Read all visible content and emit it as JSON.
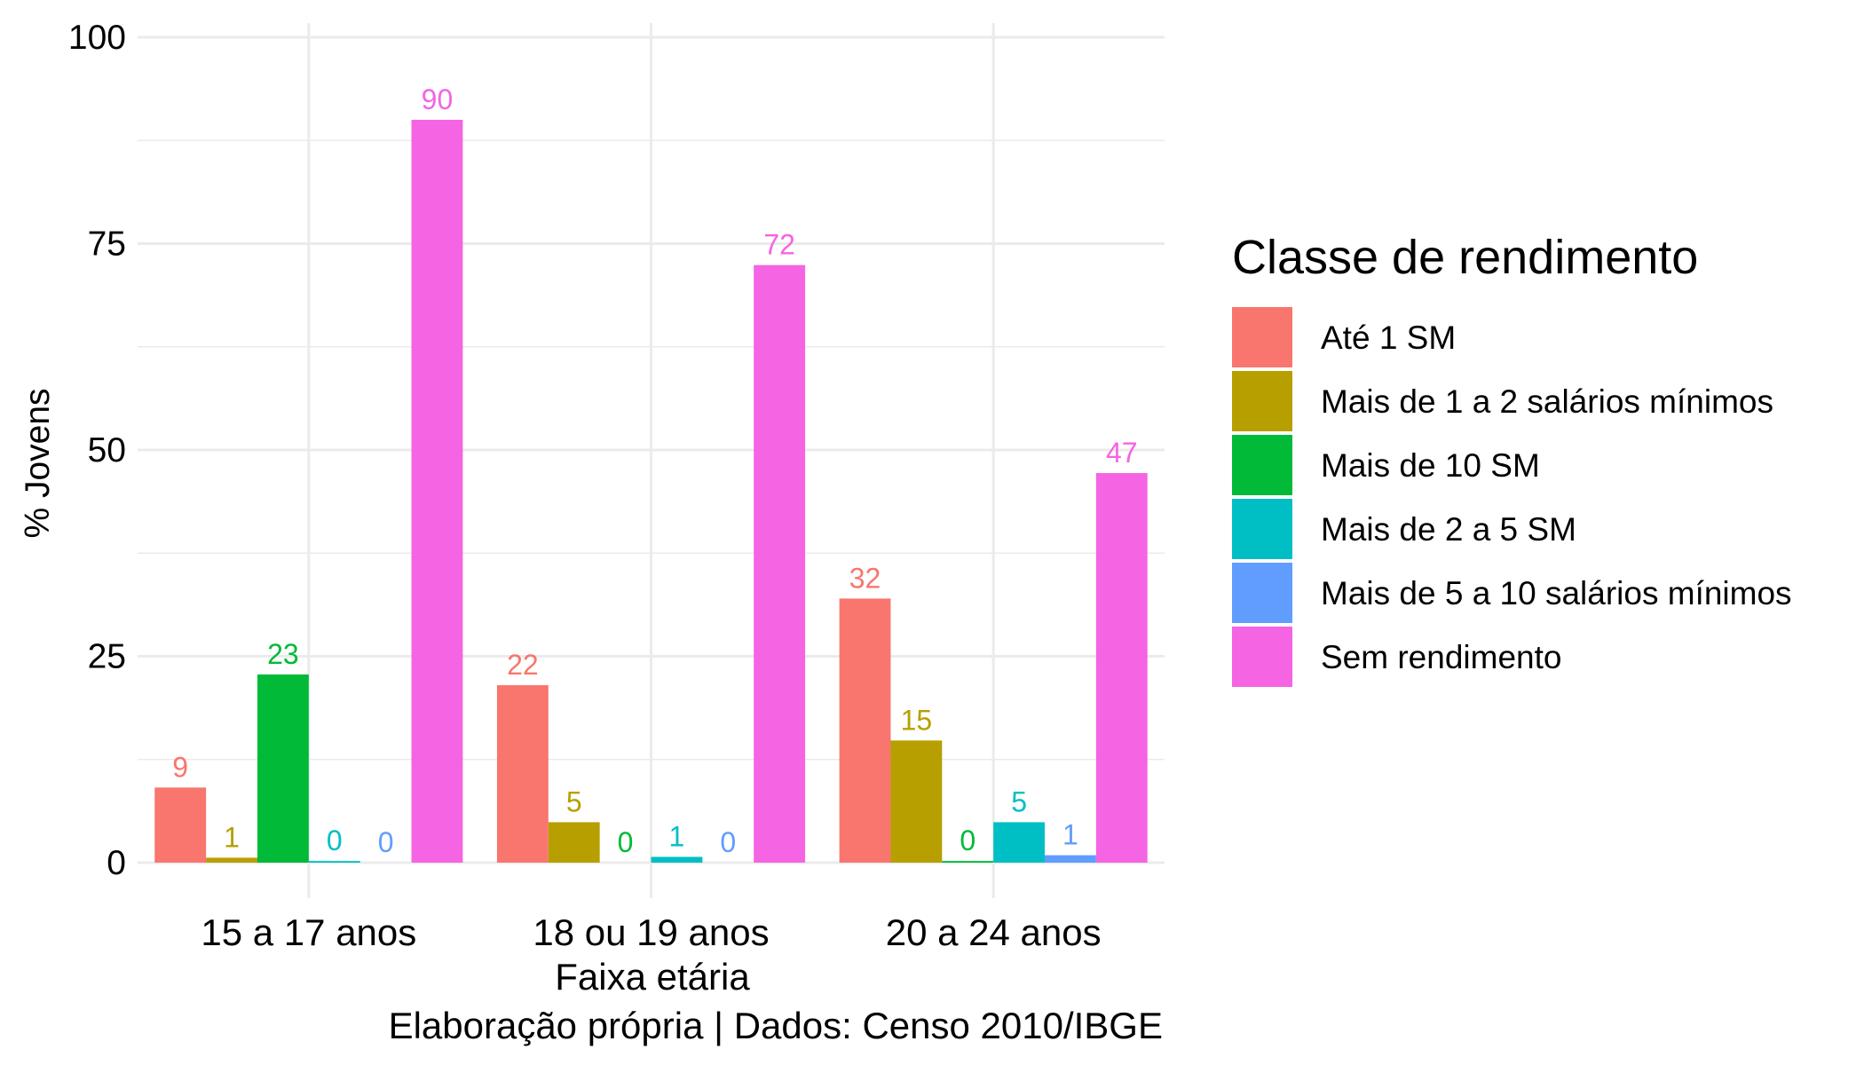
{
  "chart_data": {
    "type": "bar",
    "title": "",
    "xlabel": "Faixa etária",
    "ylabel": "% Jovens",
    "caption": "Elaboração própria | Dados: Censo 2010/IBGE",
    "ylim": [
      0,
      100
    ],
    "yticks": [
      0,
      25,
      50,
      75,
      100
    ],
    "grid": true,
    "legend_position": "right",
    "legend_title": "Classe de rendimento",
    "categories": [
      "15 a 17 anos",
      "18 ou 19 anos",
      "20 a 24 anos"
    ],
    "series": [
      {
        "name": "Até 1 SM",
        "color": "#F8766D",
        "values": [
          9.1,
          21.5,
          32.0
        ],
        "labels": [
          "9",
          "22",
          "32"
        ]
      },
      {
        "name": "Mais de 1 a 2 salários mínimos",
        "color": "#B79F00",
        "values": [
          0.6,
          4.9,
          14.8
        ],
        "labels": [
          "1",
          "5",
          "15"
        ]
      },
      {
        "name": "Mais de 10 SM",
        "color": "#00BA38",
        "values": [
          22.8,
          0.0,
          0.2
        ],
        "labels": [
          "23",
          "0",
          "0"
        ]
      },
      {
        "name": "Mais de 2 a 5 SM",
        "color": "#00BFC4",
        "values": [
          0.2,
          0.7,
          4.9
        ],
        "labels": [
          "0",
          "1",
          "5"
        ]
      },
      {
        "name": "Mais de 5 a 10 salários mínimos",
        "color": "#619CFF",
        "values": [
          0.0,
          0.0,
          0.9
        ],
        "labels": [
          "0",
          "0",
          "1"
        ]
      },
      {
        "name": "Sem rendimento",
        "color": "#F564E3",
        "values": [
          90.0,
          72.4,
          47.2
        ],
        "labels": [
          "90",
          "72",
          "47"
        ]
      }
    ]
  }
}
